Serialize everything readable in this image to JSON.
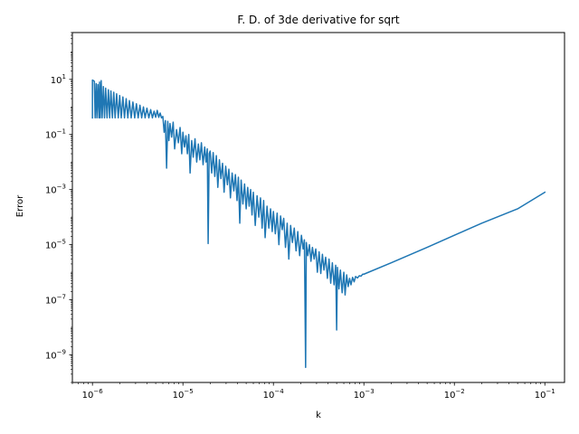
{
  "chart_data": {
    "type": "line",
    "title": "F. D. of 3de derivative for sqrt",
    "xlabel": "k",
    "ylabel": "Error",
    "xscale": "log",
    "yscale": "log",
    "xlim": [
      6e-07,
      0.165
    ],
    "ylim": [
      1e-10,
      500
    ],
    "grid": false,
    "line_color": "#1f77b4",
    "x_ticks": [
      {
        "value": 1e-06,
        "base": "10",
        "exp": "−6"
      },
      {
        "value": 1e-05,
        "base": "10",
        "exp": "−5"
      },
      {
        "value": 0.0001,
        "base": "10",
        "exp": "−4"
      },
      {
        "value": 0.001,
        "base": "10",
        "exp": "−3"
      },
      {
        "value": 0.01,
        "base": "10",
        "exp": "−2"
      },
      {
        "value": 0.1,
        "base": "10",
        "exp": "−1"
      }
    ],
    "y_ticks": [
      {
        "value": 1e-09,
        "base": "10",
        "exp": "−9"
      },
      {
        "value": 1e-07,
        "base": "10",
        "exp": "−7"
      },
      {
        "value": 1e-05,
        "base": "10",
        "exp": "−5"
      },
      {
        "value": 0.001,
        "base": "10",
        "exp": "−3"
      },
      {
        "value": 0.1,
        "base": "10",
        "exp": "−1"
      },
      {
        "value": 10,
        "base": "10",
        "exp": "1"
      }
    ],
    "series": [
      {
        "points": [
          [
            1e-06,
            0.4
          ],
          [
            1e-06,
            9.5
          ],
          [
            1.05e-06,
            8.5
          ],
          [
            1.07e-06,
            0.4
          ],
          [
            1.1e-06,
            7.0
          ],
          [
            1.12e-06,
            0.4
          ],
          [
            1.15e-06,
            6.5
          ],
          [
            1.18e-06,
            0.4
          ],
          [
            1.2e-06,
            8.0
          ],
          [
            1.22e-06,
            0.4
          ],
          [
            1.25e-06,
            9.0
          ],
          [
            1.28e-06,
            0.4
          ],
          [
            1.32e-06,
            5.5
          ],
          [
            1.36e-06,
            0.4
          ],
          [
            1.4e-06,
            4.8
          ],
          [
            1.45e-06,
            0.4
          ],
          [
            1.5e-06,
            4.2
          ],
          [
            1.55e-06,
            0.4
          ],
          [
            1.6e-06,
            3.8
          ],
          [
            1.66e-06,
            0.4
          ],
          [
            1.72e-06,
            3.4
          ],
          [
            1.78e-06,
            0.4
          ],
          [
            1.85e-06,
            3.0
          ],
          [
            1.93e-06,
            0.4
          ],
          [
            2e-06,
            2.6
          ],
          [
            2.08e-06,
            0.4
          ],
          [
            2.17e-06,
            2.3
          ],
          [
            2.26e-06,
            0.4
          ],
          [
            2.36e-06,
            2.0
          ],
          [
            2.46e-06,
            0.4
          ],
          [
            2.56e-06,
            1.7
          ],
          [
            2.68e-06,
            0.4
          ],
          [
            2.8e-06,
            1.5
          ],
          [
            2.93e-06,
            0.4
          ],
          [
            3.06e-06,
            1.3
          ],
          [
            3.2e-06,
            0.4
          ],
          [
            3.35e-06,
            1.15
          ],
          [
            3.5e-06,
            0.4
          ],
          [
            3.66e-06,
            1.0
          ],
          [
            3.82e-06,
            0.4
          ],
          [
            4e-06,
            0.9
          ],
          [
            4.2e-06,
            0.4
          ],
          [
            4.4e-06,
            0.8
          ],
          [
            4.6e-06,
            0.4
          ],
          [
            4.8e-06,
            0.7
          ],
          [
            5e-06,
            0.42
          ],
          [
            5.2e-06,
            0.75
          ],
          [
            5.4e-06,
            0.42
          ],
          [
            5.6e-06,
            0.6
          ],
          [
            5.8e-06,
            0.4
          ],
          [
            6e-06,
            0.45
          ],
          [
            6.2e-06,
            0.12
          ],
          [
            6.4e-06,
            0.32
          ],
          [
            6.6e-06,
            0.006
          ],
          [
            6.8e-06,
            0.3
          ],
          [
            7e-06,
            0.06
          ],
          [
            7.2e-06,
            0.25
          ],
          [
            7.5e-06,
            0.08
          ],
          [
            7.8e-06,
            0.28
          ],
          [
            8.1e-06,
            0.03
          ],
          [
            8.5e-06,
            0.15
          ],
          [
            8.9e-06,
            0.05
          ],
          [
            9.3e-06,
            0.18
          ],
          [
            9.7e-06,
            0.02
          ],
          [
            1e-05,
            0.12
          ],
          [
            1.04e-05,
            0.035
          ],
          [
            1.08e-05,
            0.09
          ],
          [
            1.12e-05,
            0.02
          ],
          [
            1.16e-05,
            0.1
          ],
          [
            1.2e-05,
            0.004
          ],
          [
            1.25e-05,
            0.06
          ],
          [
            1.3e-05,
            0.015
          ],
          [
            1.36e-05,
            0.07
          ],
          [
            1.42e-05,
            0.01
          ],
          [
            1.48e-05,
            0.045
          ],
          [
            1.54e-05,
            0.012
          ],
          [
            1.6e-05,
            0.05
          ],
          [
            1.67e-05,
            0.008
          ],
          [
            1.74e-05,
            0.035
          ],
          [
            1.8e-05,
            0.01
          ],
          [
            1.86e-05,
            0.03
          ],
          [
            1.9e-05,
            1.1e-05
          ],
          [
            1.95e-05,
            0.02
          ],
          [
            2e-05,
            0.025
          ],
          [
            2.08e-05,
            0.004
          ],
          [
            2.16e-05,
            0.022
          ],
          [
            2.25e-05,
            0.003
          ],
          [
            2.34e-05,
            0.017
          ],
          [
            2.43e-05,
            0.0012
          ],
          [
            2.53e-05,
            0.012
          ],
          [
            2.63e-05,
            0.0025
          ],
          [
            2.74e-05,
            0.009
          ],
          [
            2.85e-05,
            0.0008
          ],
          [
            2.97e-05,
            0.007
          ],
          [
            3.1e-05,
            0.0015
          ],
          [
            3.22e-05,
            0.0055
          ],
          [
            3.35e-05,
            0.0005
          ],
          [
            3.5e-05,
            0.004
          ],
          [
            3.65e-05,
            0.0009
          ],
          [
            3.8e-05,
            0.0035
          ],
          [
            3.96e-05,
            0.0004
          ],
          [
            4.1e-05,
            0.0028
          ],
          [
            4.25e-05,
            6e-05
          ],
          [
            4.4e-05,
            0.0022
          ],
          [
            4.6e-05,
            0.0003
          ],
          [
            4.8e-05,
            0.0016
          ],
          [
            5e-05,
            0.0002
          ],
          [
            5.2e-05,
            0.0012
          ],
          [
            5.4e-05,
            0.00025
          ],
          [
            5.6e-05,
            0.001
          ],
          [
            5.8e-05,
            0.00012
          ],
          [
            6e-05,
            0.0008
          ],
          [
            6.3e-05,
            5e-05
          ],
          [
            6.6e-05,
            0.0006
          ],
          [
            6.9e-05,
            0.0001
          ],
          [
            7.2e-05,
            0.0005
          ],
          [
            7.5e-05,
            4e-05
          ],
          [
            7.8e-05,
            0.0004
          ],
          [
            8.1e-05,
            1.8e-05
          ],
          [
            8.5e-05,
            0.00025
          ],
          [
            8.9e-05,
            4e-05
          ],
          [
            9.3e-05,
            0.0002
          ],
          [
            9.7e-05,
            3e-05
          ],
          [
            0.0001,
            0.00016
          ],
          [
            0.000105,
            2.5e-05
          ],
          [
            0.00011,
            0.00014
          ],
          [
            0.000115,
            1e-05
          ],
          [
            0.00012,
            0.00011
          ],
          [
            0.000125,
            3.5e-05
          ],
          [
            0.00013,
            9e-05
          ],
          [
            0.000136,
            8e-06
          ],
          [
            0.000142,
            6e-05
          ],
          [
            0.000148,
            3e-06
          ],
          [
            0.000155,
            5e-05
          ],
          [
            0.000162,
            1.2e-05
          ],
          [
            0.00017,
            4e-05
          ],
          [
            0.000178,
            6e-06
          ],
          [
            0.000186,
            3e-05
          ],
          [
            0.000195,
            4e-06
          ],
          [
            0.000204,
            2.2e-05
          ],
          [
            0.000213,
            7e-06
          ],
          [
            0.00022,
            1.5e-05
          ],
          [
            0.000227,
            3.5e-10
          ],
          [
            0.000231,
            1.2e-05
          ],
          [
            0.00024,
            4e-06
          ],
          [
            0.00025,
            1e-05
          ],
          [
            0.00026,
            2.5e-06
          ],
          [
            0.00027,
            8e-06
          ],
          [
            0.000282,
            3e-06
          ],
          [
            0.000294,
            7e-06
          ],
          [
            0.000306,
            1e-06
          ],
          [
            0.00032,
            5.5e-06
          ],
          [
            0.000334,
            9e-07
          ],
          [
            0.000348,
            4.5e-06
          ],
          [
            0.000362,
            1.2e-06
          ],
          [
            0.000378,
            3.5e-06
          ],
          [
            0.000395,
            6e-07
          ],
          [
            0.000412,
            3e-06
          ],
          [
            0.00043,
            4e-07
          ],
          [
            0.000448,
            2.2e-06
          ],
          [
            0.000468,
            3.5e-07
          ],
          [
            0.000488,
            1.8e-06
          ],
          [
            0.0005,
            8e-09
          ],
          [
            0.00051,
            1.5e-06
          ],
          [
            0.00053,
            2.5e-07
          ],
          [
            0.00055,
            1.2e-06
          ],
          [
            0.000575,
            1.8e-07
          ],
          [
            0.0006,
            1e-06
          ],
          [
            0.00062,
            1.5e-07
          ],
          [
            0.000645,
            8e-07
          ],
          [
            0.00067,
            3e-07
          ],
          [
            0.000695,
            6e-07
          ],
          [
            0.00072,
            3.5e-07
          ],
          [
            0.00075,
            6.5e-07
          ],
          [
            0.00078,
            4.5e-07
          ],
          [
            0.00081,
            7e-07
          ],
          [
            0.00085,
            6.2e-07
          ],
          [
            0.00089,
            7.5e-07
          ],
          [
            0.00093,
            7.2e-07
          ],
          [
            0.00097,
            8.5e-07
          ],
          [
            0.001,
            8.5e-07
          ],
          [
            0.002,
            2.2e-06
          ],
          [
            0.005,
            8e-06
          ],
          [
            0.01,
            2.2e-05
          ],
          [
            0.02,
            6e-05
          ],
          [
            0.05,
            0.0002
          ],
          [
            0.1,
            0.0008
          ]
        ]
      }
    ]
  }
}
